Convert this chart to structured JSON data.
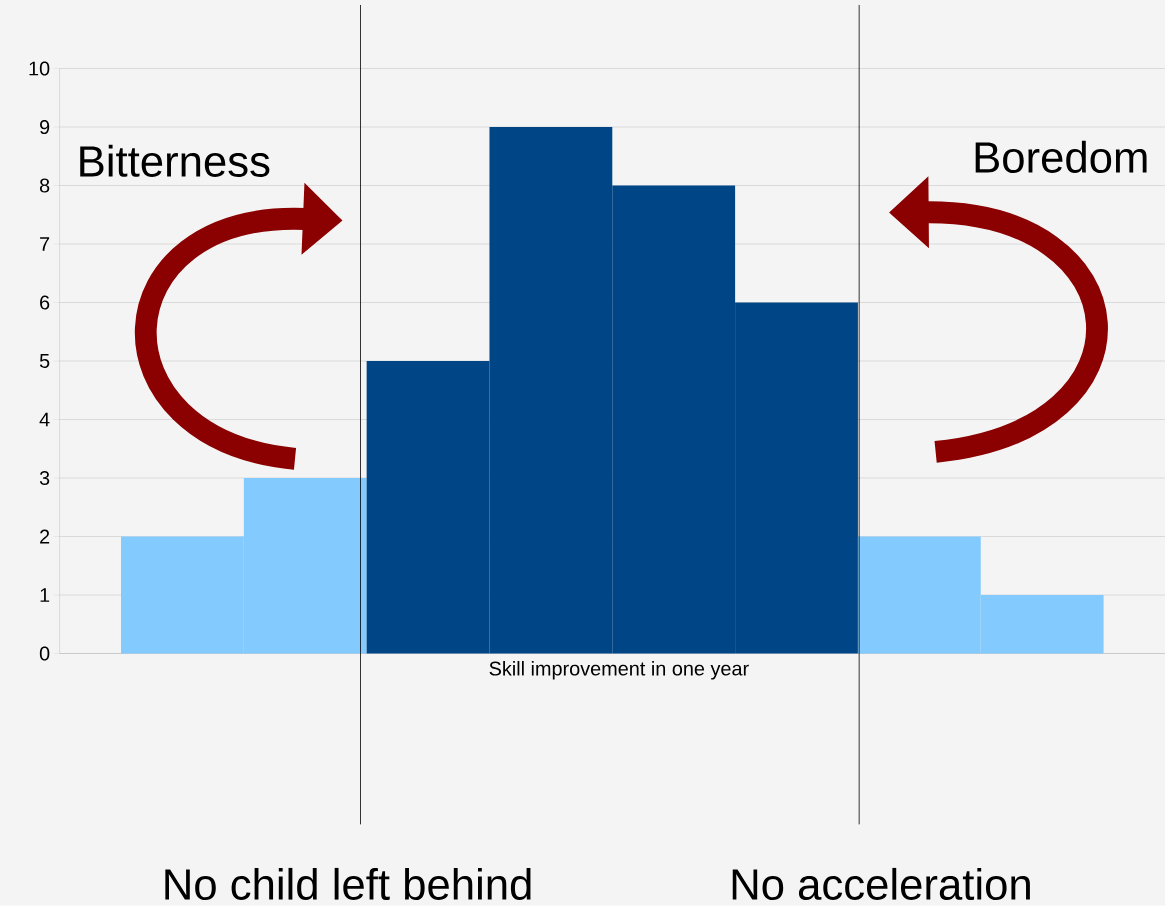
{
  "chart_data": {
    "type": "bar",
    "xlabel": "Skill improvement in one year",
    "categories": [
      null,
      null,
      null,
      null,
      null,
      null,
      null,
      null
    ],
    "values": [
      2,
      3,
      5,
      9,
      8,
      6,
      2,
      1
    ],
    "colors": [
      "#83caff",
      "#83caff",
      "#004586",
      "#004586",
      "#004586",
      "#004586",
      "#83caff",
      "#83caff"
    ],
    "ylim": [
      0,
      10
    ],
    "yticks": [
      0,
      1,
      2,
      3,
      4,
      5,
      6,
      7,
      8,
      9,
      10
    ],
    "grid": "y",
    "annotations": [
      "Bitterness",
      "Boredom",
      "No child left behind",
      "No acceleration"
    ]
  }
}
